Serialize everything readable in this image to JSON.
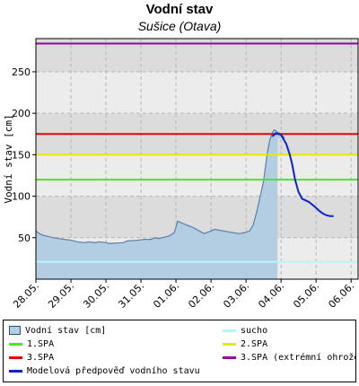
{
  "title": "Vodní stav",
  "subtitle": "Sušice (Otava)",
  "chart_data": {
    "type": "area",
    "ylabel": "Vodní stav [cm]",
    "ylim": [
      0,
      290
    ],
    "yticks": [
      "50",
      "100",
      "150",
      "200",
      "250"
    ],
    "ytick_values": [
      50,
      100,
      150,
      200,
      250
    ],
    "xlim": [
      0,
      9.2
    ],
    "xtick_labels": [
      "28.05.",
      "29.05.",
      "30.05.",
      "31.05.",
      "01.06.",
      "02.06.",
      "03.06.",
      "04.06.",
      "05.06.",
      "06.06."
    ],
    "xtick_values": [
      0,
      1,
      2,
      3,
      4,
      5,
      6,
      7,
      8,
      9
    ],
    "grid": true,
    "observed": {
      "name": "Vodní stav [cm]",
      "color": "#b3cde3",
      "line_color": "#5b7fa6",
      "x": [
        0,
        0.1,
        0.2,
        0.3,
        0.5,
        0.8,
        1.0,
        1.2,
        1.4,
        1.5,
        1.7,
        1.8,
        2.0,
        2.1,
        2.5,
        2.6,
        2.9,
        3.1,
        3.3,
        3.4,
        3.5,
        3.6,
        3.8,
        3.95,
        4.05,
        4.2,
        4.5,
        4.8,
        5.0,
        5.1,
        5.5,
        5.8,
        5.95,
        6.1,
        6.2,
        6.3,
        6.5,
        6.6,
        6.68,
        6.75,
        6.8,
        6.85,
        6.9,
        7.0,
        7.1
      ],
      "y": [
        58,
        55,
        53,
        52,
        50,
        48,
        47,
        45,
        44,
        45,
        44,
        45,
        44,
        43,
        44,
        46,
        47,
        48,
        48,
        50,
        49,
        50,
        52,
        56,
        70,
        67,
        62,
        55,
        58,
        60,
        57,
        55,
        56,
        58,
        65,
        80,
        118,
        150,
        168,
        176,
        180,
        179,
        177,
        175,
        170
      ]
    },
    "forecast": {
      "name": "Modelová předpověď vodního stavu",
      "color": "#0a24c8",
      "x": [
        6.75,
        6.85,
        7.0,
        7.15,
        7.25,
        7.32,
        7.4,
        7.5,
        7.6,
        7.7,
        7.8,
        8.0,
        8.1,
        8.2,
        8.3,
        8.4,
        8.5
      ],
      "y": [
        172,
        176,
        174,
        163,
        150,
        138,
        120,
        105,
        97,
        95,
        93,
        86,
        82,
        79,
        77,
        76,
        76
      ]
    },
    "forecast_region_start": 6.9,
    "thresholds": [
      {
        "name": "sucho",
        "value": 21,
        "color": "#b6f5f5"
      },
      {
        "name": "1.SPA",
        "value": 120,
        "color": "#55dd33"
      },
      {
        "name": "2.SPA",
        "value": 150,
        "color": "#e8e800"
      },
      {
        "name": "3.SPA",
        "value": 175,
        "color": "#ee0000"
      },
      {
        "name": "3.SPA (extrémní ohrožení)",
        "value": 284,
        "color": "#9900aa"
      }
    ]
  },
  "legend": {
    "items": [
      {
        "label": "Vodní stav [cm]",
        "type": "box",
        "color": "#b3cde3",
        "col": 0,
        "row": 0
      },
      {
        "label": "sucho",
        "type": "line",
        "color": "#b6f5f5",
        "col": 1,
        "row": 0
      },
      {
        "label": "1.SPA",
        "type": "line",
        "color": "#55dd33",
        "col": 0,
        "row": 1
      },
      {
        "label": "2.SPA",
        "type": "line",
        "color": "#e8e800",
        "col": 1,
        "row": 1
      },
      {
        "label": "3.SPA",
        "type": "line",
        "color": "#ee0000",
        "col": 0,
        "row": 2
      },
      {
        "label": "3.SPA (extrémní ohrožení)",
        "type": "line",
        "color": "#9900aa",
        "col": 1,
        "row": 2
      },
      {
        "label": "Modelová předpověď vodního stavu",
        "type": "line",
        "color": "#0a24c8",
        "col": 0,
        "row": 3
      }
    ]
  }
}
